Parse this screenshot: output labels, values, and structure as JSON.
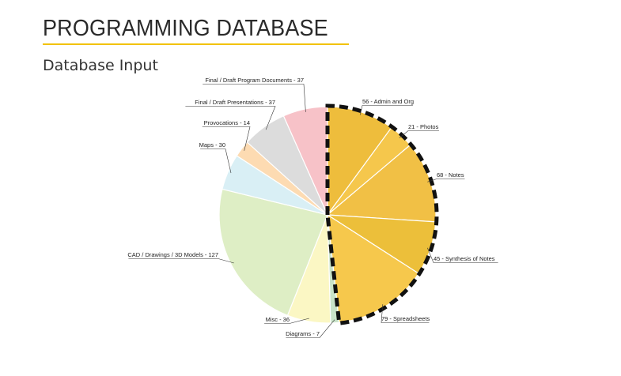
{
  "header": {
    "title": "PROGRAMMING DATABASE",
    "subtitle": "Database Input"
  },
  "colors": {
    "accent_rule": "#f2c200",
    "highlight_outline": "#111111"
  },
  "chart_data": {
    "type": "pie",
    "title": "",
    "highlighted_group": [
      "Admin and Org",
      "Photos",
      "Notes",
      "Synthesis of Notes",
      "Spreadsheets"
    ],
    "slices": [
      {
        "label": "56 - Admin and Org",
        "name": "Admin and Org",
        "value": 56,
        "color": "#eebd3c"
      },
      {
        "label": "21 - Photos",
        "name": "Photos",
        "value": 21,
        "color": "#f5c74c"
      },
      {
        "label": "68 - Notes",
        "name": "Notes",
        "value": 68,
        "color": "#f1c045"
      },
      {
        "label": "45 - Synthesis of Notes",
        "name": "Synthesis of Notes",
        "value": 45,
        "color": "#ecbf3a"
      },
      {
        "label": "79 - Spreadsheets",
        "name": "Spreadsheets",
        "value": 79,
        "color": "#f6c84c"
      },
      {
        "label": "Diagrams - 7",
        "name": "Diagrams",
        "value": 7,
        "color": "#c9e3c9"
      },
      {
        "label": "Misc - 36",
        "name": "Misc",
        "value": 36,
        "color": "#fbf7c4"
      },
      {
        "label": "CAD / Drawings / 3D Models - 127",
        "name": "CAD / Drawings / 3D Models",
        "value": 127,
        "color": "#deeec5"
      },
      {
        "label": "Maps - 30",
        "name": "Maps",
        "value": 30,
        "color": "#d9eff5"
      },
      {
        "label": "Provocations - 14",
        "name": "Provocations",
        "value": 14,
        "color": "#fddbb2"
      },
      {
        "label": "Final / Draft Presentations - 37",
        "name": "Final / Draft Presentations",
        "value": 37,
        "color": "#dcdcdc"
      },
      {
        "label": "Final / Draft Program Documents - 37",
        "name": "Final / Draft Program Documents",
        "value": 37,
        "color": "#f7c2c8"
      }
    ]
  }
}
